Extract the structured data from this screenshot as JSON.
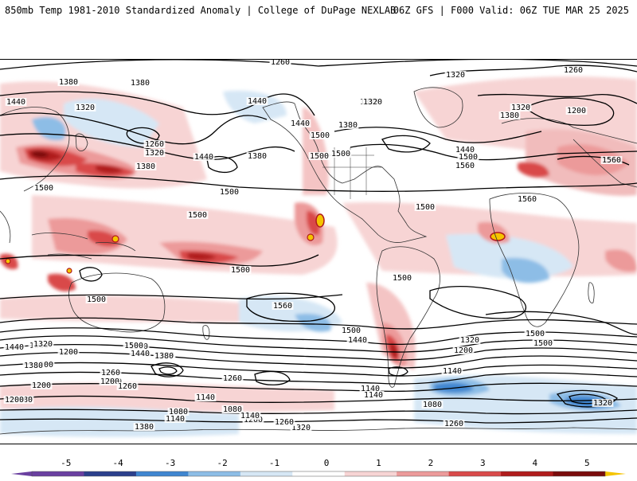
{
  "header": {
    "left": "850mb Temp 1981-2010 Standardized Anomaly | College of DuPage NEXLAB",
    "right": "06Z GFS | F000 Valid: 06Z TUE MAR 25 2025"
  },
  "colors": {
    "neg5": "#6a3fa0",
    "neg4": "#2b3f8c",
    "neg3": "#3f86d0",
    "neg2": "#8dbde6",
    "neg1": "#d6e7f5",
    "zero": "#ffffff",
    "pos1": "#f7d4d4",
    "pos2": "#ec9a9a",
    "pos3": "#d94a4a",
    "pos4": "#b01c1c",
    "pos5": "#7a0c0c",
    "extreme": "#f5c400",
    "contour": "#000000",
    "coast": "#333333"
  },
  "colorbar": {
    "ticks": [
      "-5",
      "-4",
      "-3",
      "-2",
      "-1",
      "0",
      "1",
      "2",
      "3",
      "4",
      "5"
    ]
  },
  "contour_labels": [
    "1380",
    "1380",
    "1380",
    "1440",
    "1320",
    "1260",
    "1320",
    "1380",
    "1440",
    "1380",
    "1500",
    "1440",
    "1500",
    "1380",
    "1320",
    "1440",
    "1500",
    "1440",
    "1500",
    "1560",
    "1320",
    "1320",
    "1260",
    "1320",
    "1200",
    "1380",
    "1560",
    "1500",
    "1500",
    "1500",
    "1500",
    "1560",
    "1500",
    "1500",
    "1500",
    "1500",
    "1560",
    "1500",
    "1440",
    "1500",
    "1440",
    "1380",
    "1320",
    "1260",
    "1200",
    "1320",
    "1200",
    "1140",
    "1200",
    "1080",
    "1260",
    "1380",
    "1500",
    "1440",
    "1380",
    "1320",
    "1260",
    "1200",
    "1140",
    "1080",
    "1200",
    "1380",
    "1260",
    "1140",
    "1080",
    "1140",
    "1260",
    "1200",
    "1080",
    "1140",
    "1200",
    "1320",
    "1380",
    "1260",
    "1140",
    "1320",
    "1260",
    "1380"
  ]
}
